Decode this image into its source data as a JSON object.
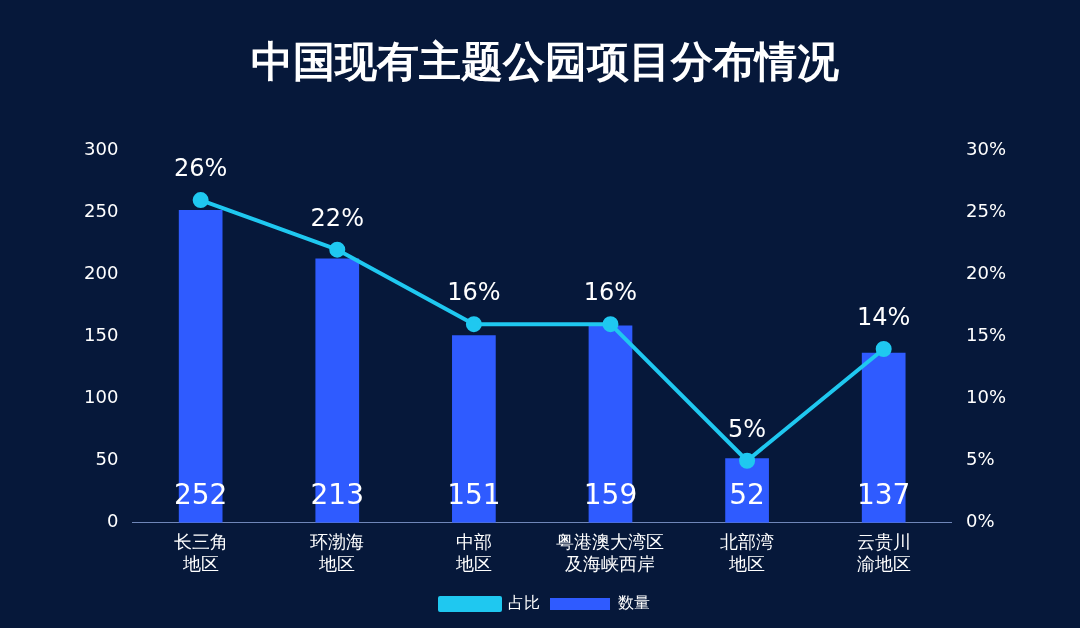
{
  "chart_data": {
    "type": "bar",
    "title": "中国现有主题公园项目分布情况",
    "categories": [
      "长三角地区",
      "环渤海地区",
      "中部地区",
      "粤港澳大湾区及海峡西岸",
      "北部湾地区",
      "云贵川渝地区"
    ],
    "series": [
      {
        "name": "数量",
        "color": "#2f5bff",
        "values": [
          252,
          213,
          151,
          159,
          52,
          137
        ]
      },
      {
        "name": "占比",
        "type": "line",
        "axis": "y2",
        "color": "#1fc8f0",
        "values": [
          26,
          22,
          16,
          16,
          5,
          14
        ],
        "value_labels": [
          "26%",
          "22%",
          "16%",
          "16%",
          "5%",
          "14%"
        ]
      }
    ],
    "ylim": [
      0,
      300
    ],
    "yticks": [
      0,
      50,
      100,
      150,
      200,
      250,
      300
    ],
    "y2lim": [
      0,
      30
    ],
    "y2ticks": [
      {
        "value": 0,
        "label": "0%"
      },
      {
        "value": 5,
        "label": "5%"
      },
      {
        "value": 10,
        "label": "10%"
      },
      {
        "value": 15,
        "label": "15%"
      },
      {
        "value": 20,
        "label": "20%"
      },
      {
        "value": 25,
        "label": "25%"
      },
      {
        "value": 30,
        "label": "30%"
      }
    ],
    "data_labels": true,
    "grid": false,
    "legend": "bottom",
    "marker": "circle",
    "line_style": "solid"
  }
}
